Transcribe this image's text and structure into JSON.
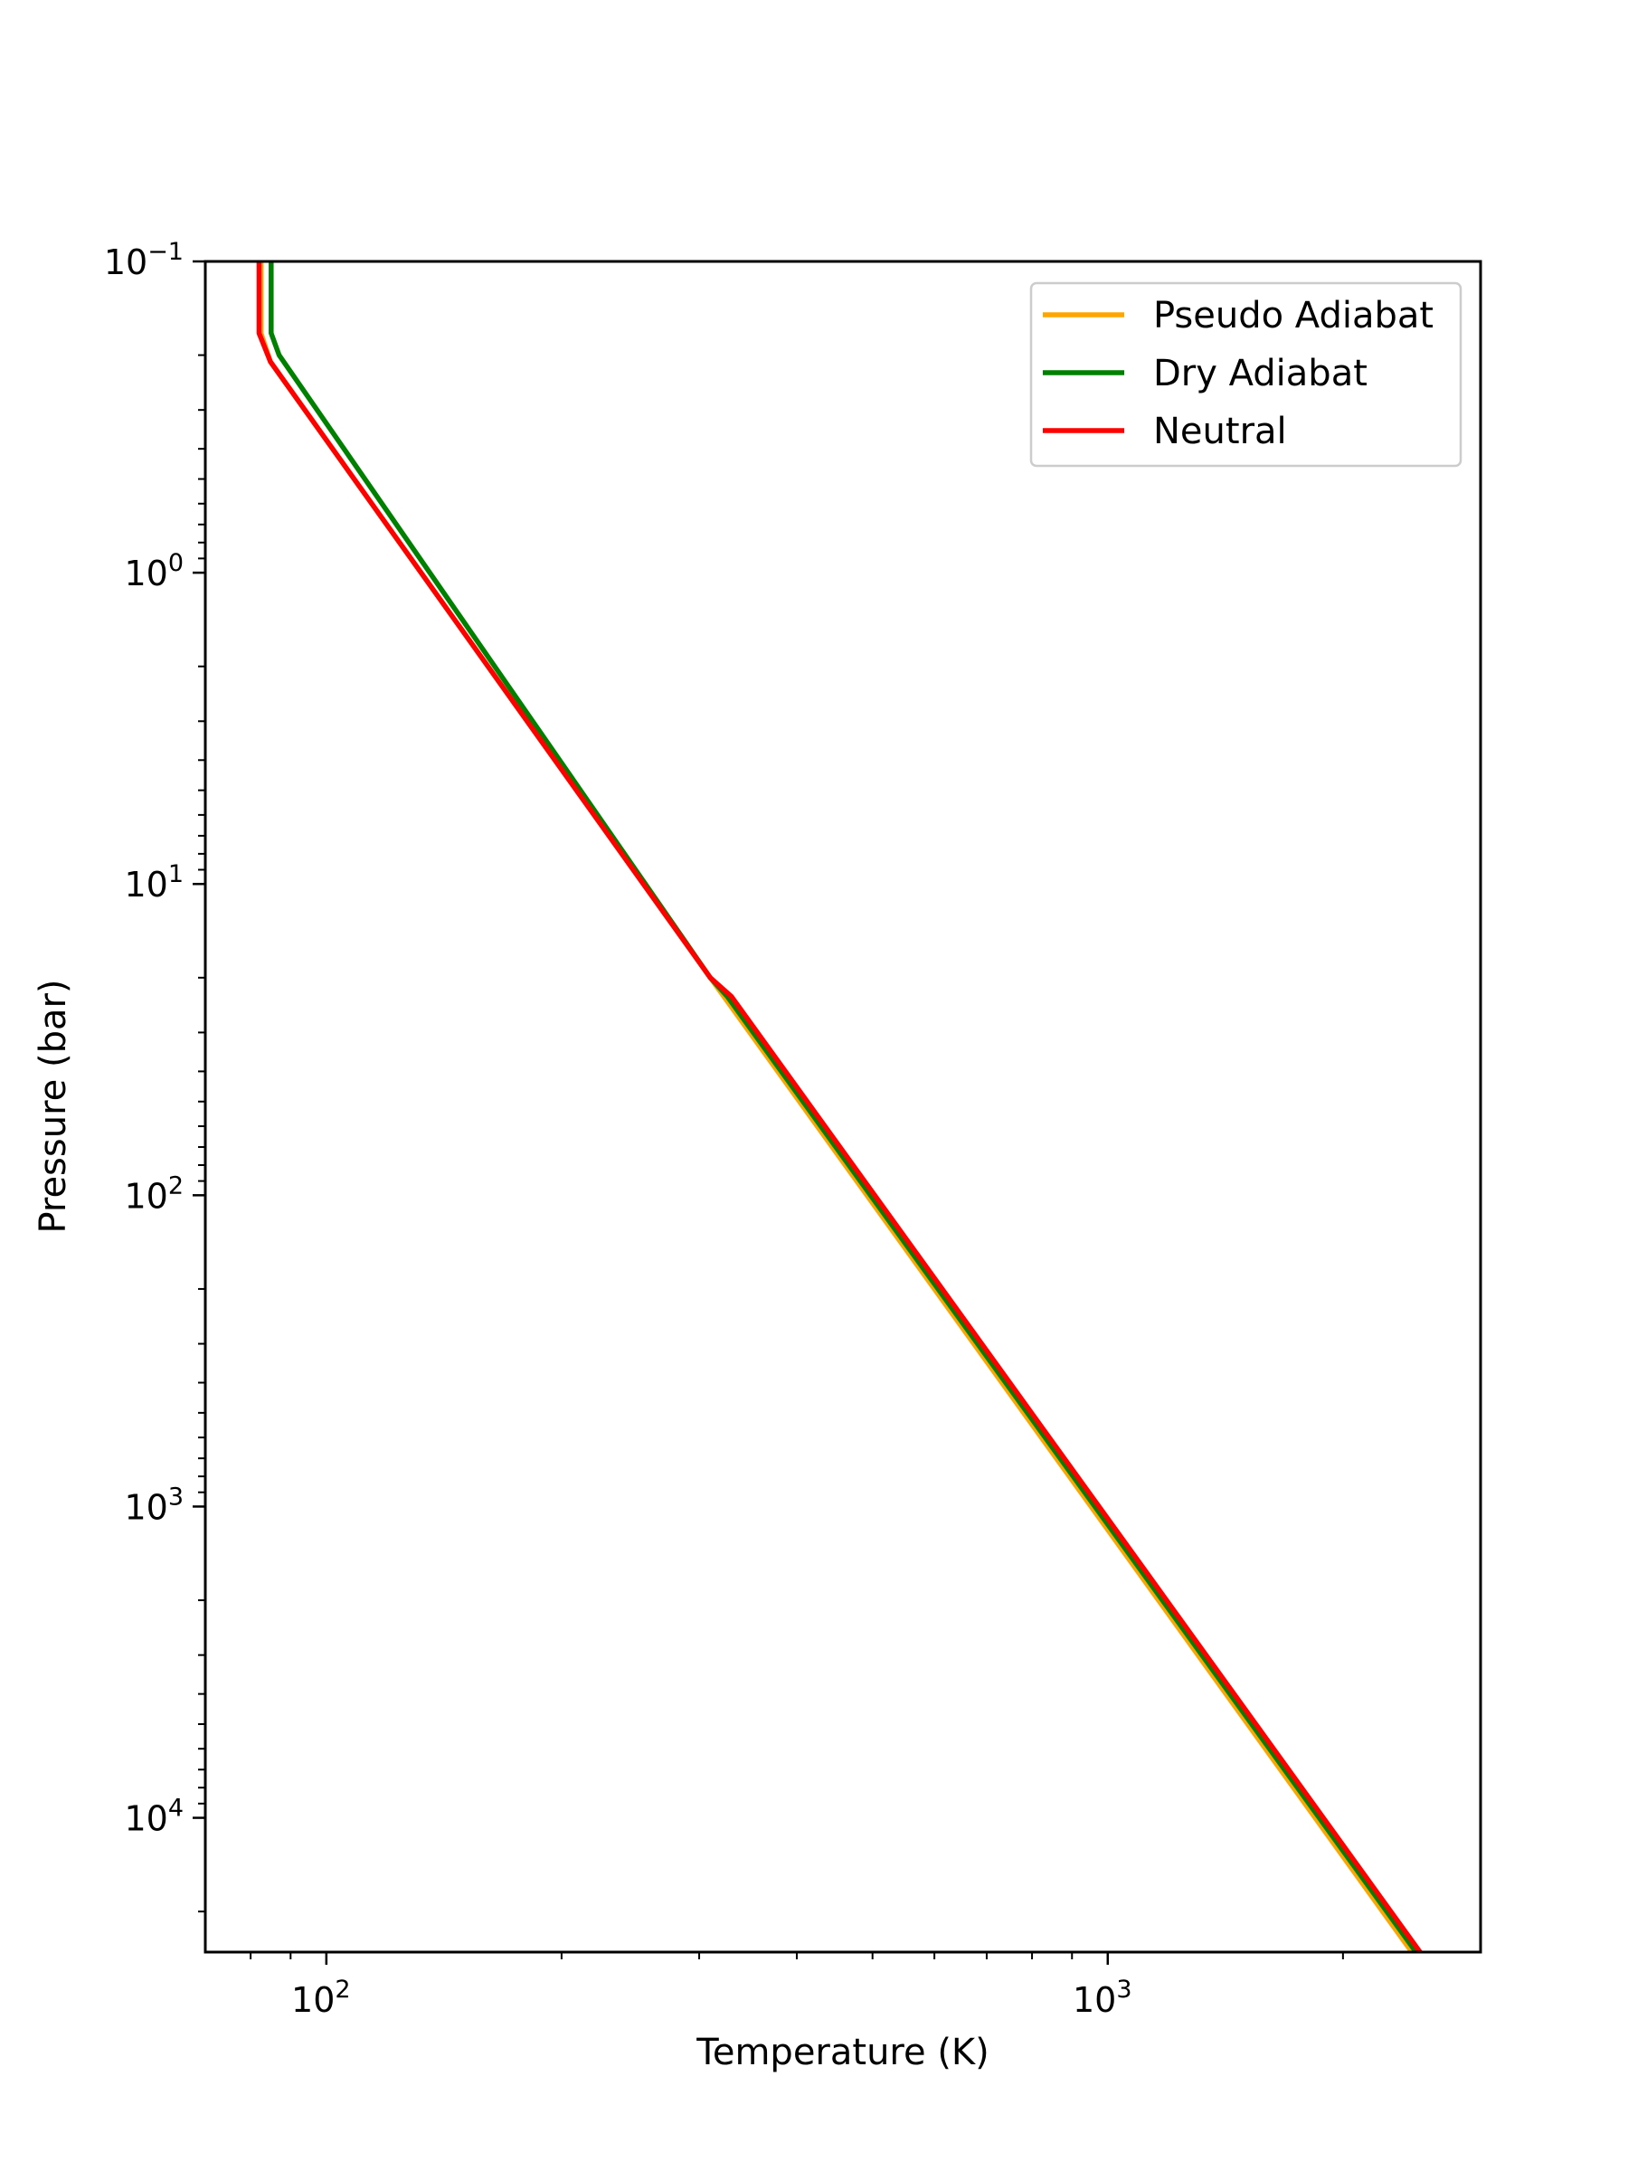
{
  "chart_data": {
    "type": "line",
    "xlabel": "Temperature (K)",
    "ylabel": "Pressure (bar)",
    "xscale": "log",
    "yscale": "log",
    "y_inverted": true,
    "xlim": [
      70,
      3000
    ],
    "ylim": [
      0.1,
      27000
    ],
    "grid": false,
    "legend_position": "top-right",
    "x_ticks": [
      {
        "value": 100,
        "base": "10",
        "exp": "2"
      },
      {
        "value": 1000,
        "base": "10",
        "exp": "3"
      }
    ],
    "y_ticks": [
      {
        "value": 0.1,
        "base": "10",
        "exp": "−1"
      },
      {
        "value": 1,
        "base": "10",
        "exp": "0"
      },
      {
        "value": 10,
        "base": "10",
        "exp": "1"
      },
      {
        "value": 100,
        "base": "10",
        "exp": "2"
      },
      {
        "value": 1000,
        "base": "10",
        "exp": "3"
      },
      {
        "value": 10000,
        "base": "10",
        "exp": "4"
      }
    ],
    "series": [
      {
        "name": "Pseudo Adiabat",
        "color": "#ffa500",
        "points": [
          [
            82.5,
            0.1
          ],
          [
            82.5,
            0.17
          ],
          [
            84.8,
            0.21
          ],
          [
            310,
            20
          ],
          [
            2450,
            27000
          ]
        ]
      },
      {
        "name": "Dry Adiabat",
        "color": "#008000",
        "points": [
          [
            85,
            0.1
          ],
          [
            85,
            0.17
          ],
          [
            87,
            0.2
          ],
          [
            310,
            20
          ],
          [
            326,
            23
          ],
          [
            2480,
            27000
          ]
        ]
      },
      {
        "name": "Neutral",
        "color": "#ff0000",
        "points": [
          [
            82,
            0.1
          ],
          [
            82,
            0.17
          ],
          [
            84.8,
            0.21
          ],
          [
            310,
            20
          ],
          [
            330,
            23
          ],
          [
            2510,
            27000
          ]
        ]
      }
    ]
  }
}
